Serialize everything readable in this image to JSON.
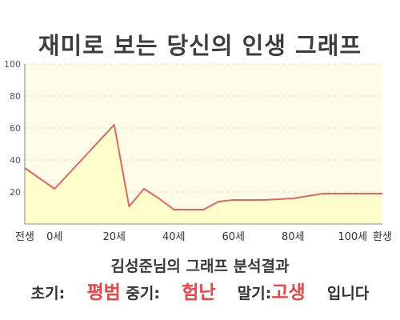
{
  "title": "재미로 보는 당신의 인생 그래프",
  "subtitle": "김성준님의 그래프 분석결과",
  "summary": {
    "early_label": "초기:",
    "early_value": "평범",
    "middle_label": "중기:",
    "middle_value": "험난",
    "late_label": "말기:",
    "late_value": "고생",
    "ending": "입니다"
  },
  "colors": {
    "line": "#e06666",
    "fill": "#ffffcc",
    "plot_bg": "#fffde8",
    "highlight": "#ee4444"
  },
  "chart_data": {
    "type": "area",
    "title": "재미로 보는 당신의 인생 그래프",
    "xlabel": "",
    "ylabel": "",
    "x": [
      -10,
      0,
      10,
      20,
      25,
      30,
      35,
      40,
      50,
      55,
      60,
      70,
      80,
      90,
      100,
      110
    ],
    "values": [
      35,
      22,
      42,
      62,
      11,
      22,
      16,
      9,
      9,
      14,
      15,
      15,
      16,
      19,
      19,
      19
    ],
    "x_tick_values": [
      -10,
      0,
      20,
      40,
      60,
      80,
      100,
      110
    ],
    "x_tick_labels": [
      "전생",
      "0세",
      "20세",
      "40세",
      "60세",
      "80세",
      "100세",
      "환생"
    ],
    "y_ticks": [
      20,
      40,
      60,
      80,
      100
    ],
    "xlim": [
      -10,
      110
    ],
    "ylim": [
      0,
      100
    ],
    "grid": true,
    "legend": "none"
  }
}
